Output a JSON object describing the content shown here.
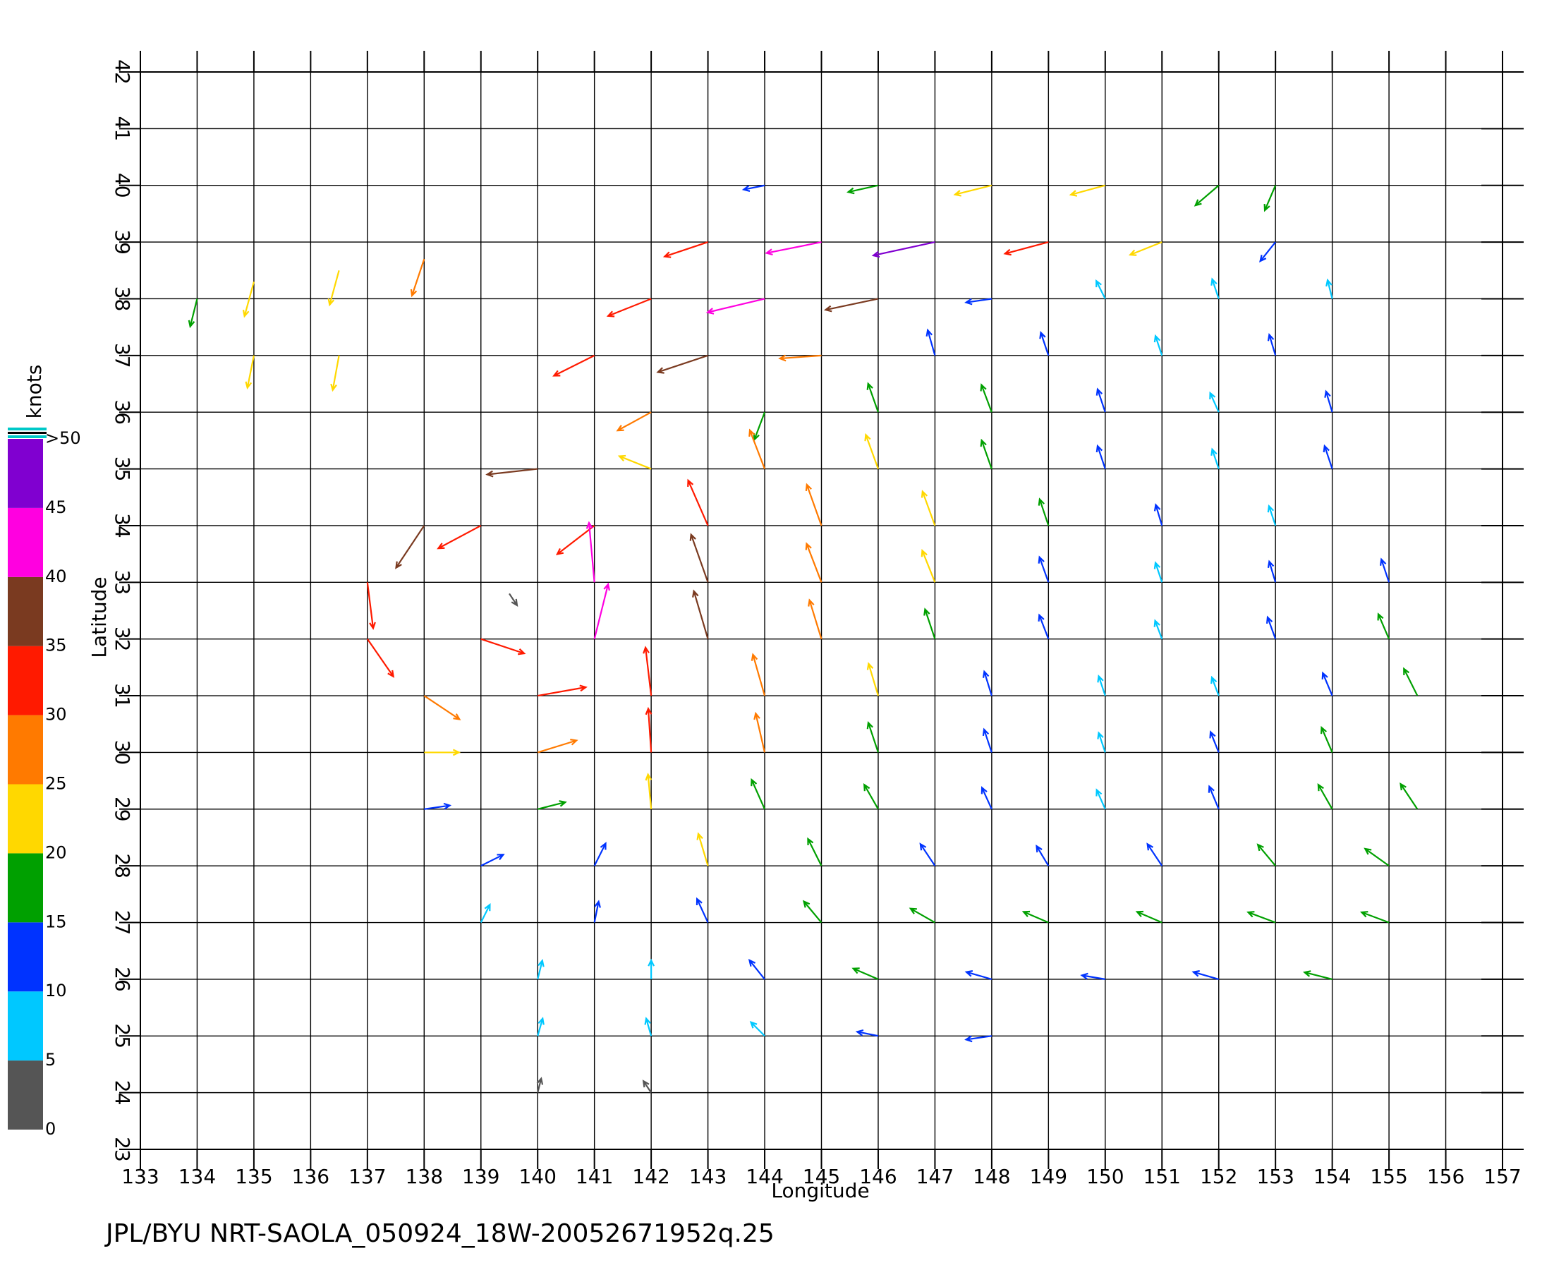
{
  "chart_data": {
    "type": "quiver",
    "footer": "JPL/BYU  NRT-SAOLA_050924_18W-20052671952q.25",
    "x_label": "Longitude",
    "y_label": "Latitude",
    "xlim": [
      133,
      157
    ],
    "xticks": [
      133,
      134,
      135,
      136,
      137,
      138,
      139,
      140,
      141,
      142,
      143,
      144,
      145,
      146,
      147,
      148,
      149,
      150,
      151,
      152,
      153,
      154,
      155,
      156,
      157
    ],
    "ylim": [
      23,
      42
    ],
    "yticks": [
      23,
      24,
      25,
      26,
      27,
      28,
      29,
      30,
      31,
      32,
      33,
      34,
      35,
      36,
      37,
      38,
      39,
      40,
      41,
      42
    ],
    "grid": true,
    "colorbar": {
      "title": "knots",
      "bins": [
        0,
        5,
        10,
        15,
        20,
        25,
        30,
        35,
        40,
        45,
        50
      ],
      "ticks": [
        0,
        5,
        10,
        15,
        20,
        25,
        30,
        35,
        40,
        45,
        {
          "value": 50,
          "label": ">50"
        }
      ],
      "colors": [
        "#555555",
        "#00c8ff",
        "#0033ff",
        "#00a000",
        "#ffd800",
        "#ff7a00",
        "#ff1a00",
        "#7a3a20",
        "#ff00e0",
        "#8000d0"
      ]
    },
    "vectors": [
      {
        "x": 144,
        "y": 40,
        "u": -10,
        "v": -2
      },
      {
        "x": 146,
        "y": 40,
        "u": -18,
        "v": -4
      },
      {
        "x": 148,
        "y": 40,
        "u": -24,
        "v": -6
      },
      {
        "x": 150,
        "y": 40,
        "u": -22,
        "v": -6
      },
      {
        "x": 152,
        "y": 40,
        "u": -14,
        "v": -12
      },
      {
        "x": 153,
        "y": 40,
        "u": -6,
        "v": -14
      },
      {
        "x": 143,
        "y": 39,
        "u": -30,
        "v": -10
      },
      {
        "x": 145,
        "y": 39,
        "u": -40,
        "v": -8
      },
      {
        "x": 147,
        "y": 39,
        "u": -46,
        "v": -10
      },
      {
        "x": 149,
        "y": 39,
        "u": -30,
        "v": -8
      },
      {
        "x": 151,
        "y": 39,
        "u": -20,
        "v": -8
      },
      {
        "x": 153,
        "y": 39,
        "u": -8,
        "v": -10
      },
      {
        "x": 142,
        "y": 38,
        "u": -30,
        "v": -12
      },
      {
        "x": 144,
        "y": 38,
        "u": -42,
        "v": -10
      },
      {
        "x": 146,
        "y": 38,
        "u": -38,
        "v": -8
      },
      {
        "x": 148,
        "y": 38,
        "u": -14,
        "v": -2
      },
      {
        "x": 150,
        "y": 38,
        "u": -4,
        "v": 8
      },
      {
        "x": 152,
        "y": 38,
        "u": -3,
        "v": 9
      },
      {
        "x": 154,
        "y": 38,
        "u": -2,
        "v": 8
      },
      {
        "x": 141,
        "y": 37,
        "u": -28,
        "v": -14
      },
      {
        "x": 143,
        "y": 37,
        "u": -36,
        "v": -12
      },
      {
        "x": 145,
        "y": 37,
        "u": -28,
        "v": -2
      },
      {
        "x": 147,
        "y": 37,
        "u": -4,
        "v": 14
      },
      {
        "x": 149,
        "y": 37,
        "u": -4,
        "v": 12
      },
      {
        "x": 151,
        "y": 37,
        "u": -3,
        "v": 9
      },
      {
        "x": 153,
        "y": 37,
        "u": -3,
        "v": 10
      },
      {
        "x": 142,
        "y": 36,
        "u": -22,
        "v": -12
      },
      {
        "x": 144,
        "y": 36,
        "u": -6,
        "v": -16
      },
      {
        "x": 146,
        "y": 36,
        "u": -6,
        "v": 17
      },
      {
        "x": 148,
        "y": 36,
        "u": -6,
        "v": 16
      },
      {
        "x": 150,
        "y": 36,
        "u": -4,
        "v": 12
      },
      {
        "x": 152,
        "y": 36,
        "u": -4,
        "v": 9
      },
      {
        "x": 154,
        "y": 36,
        "u": -3,
        "v": 10
      },
      {
        "x": 140,
        "y": 35,
        "u": -36,
        "v": -4
      },
      {
        "x": 142,
        "y": 35,
        "u": -20,
        "v": 8
      },
      {
        "x": 144,
        "y": 35,
        "u": -10,
        "v": 26
      },
      {
        "x": 146,
        "y": 35,
        "u": -8,
        "v": 22
      },
      {
        "x": 148,
        "y": 35,
        "u": -6,
        "v": 17
      },
      {
        "x": 150,
        "y": 35,
        "u": -4,
        "v": 12
      },
      {
        "x": 152,
        "y": 35,
        "u": -3,
        "v": 9
      },
      {
        "x": 154,
        "y": 35,
        "u": -4,
        "v": 12
      },
      {
        "x": 138,
        "y": 34,
        "u": -20,
        "v": -30
      },
      {
        "x": 139,
        "y": 34,
        "u": -30,
        "v": -16
      },
      {
        "x": 141,
        "y": 34,
        "u": -26,
        "v": -20
      },
      {
        "x": 143,
        "y": 34,
        "u": -14,
        "v": 32
      },
      {
        "x": 145,
        "y": 34,
        "u": -10,
        "v": 28
      },
      {
        "x": 147,
        "y": 34,
        "u": -8,
        "v": 22
      },
      {
        "x": 149,
        "y": 34,
        "u": -5,
        "v": 15
      },
      {
        "x": 151,
        "y": 34,
        "u": -3,
        "v": 10
      },
      {
        "x": 153,
        "y": 34,
        "u": -3,
        "v": 9
      },
      {
        "x": 137,
        "y": 33,
        "u": 4,
        "v": -32
      },
      {
        "x": 139.5,
        "y": 32.8,
        "u": 2,
        "v": -3
      },
      {
        "x": 141,
        "y": 33,
        "u": -4,
        "v": 44
      },
      {
        "x": 143,
        "y": 33,
        "u": -12,
        "v": 34
      },
      {
        "x": 145,
        "y": 33,
        "u": -10,
        "v": 26
      },
      {
        "x": 147,
        "y": 33,
        "u": -8,
        "v": 20
      },
      {
        "x": 149,
        "y": 33,
        "u": -5,
        "v": 14
      },
      {
        "x": 151,
        "y": 33,
        "u": -3,
        "v": 9
      },
      {
        "x": 153,
        "y": 33,
        "u": -3,
        "v": 10
      },
      {
        "x": 155,
        "y": 33,
        "u": -4,
        "v": 12
      },
      {
        "x": 137,
        "y": 32,
        "u": 18,
        "v": -26
      },
      {
        "x": 139,
        "y": 32,
        "u": 30,
        "v": -10
      },
      {
        "x": 141,
        "y": 32,
        "u": 10,
        "v": 40
      },
      {
        "x": 143,
        "y": 32,
        "u": -10,
        "v": 34
      },
      {
        "x": 145,
        "y": 32,
        "u": -8,
        "v": 26
      },
      {
        "x": 147,
        "y": 32,
        "u": -6,
        "v": 18
      },
      {
        "x": 149,
        "y": 32,
        "u": -5,
        "v": 13
      },
      {
        "x": 151,
        "y": 32,
        "u": -3,
        "v": 8
      },
      {
        "x": 153,
        "y": 32,
        "u": -4,
        "v": 11
      },
      {
        "x": 155,
        "y": 32,
        "u": -6,
        "v": 14
      },
      {
        "x": 138,
        "y": 31,
        "u": 24,
        "v": -16
      },
      {
        "x": 140,
        "y": 31,
        "u": 34,
        "v": 6
      },
      {
        "x": 142,
        "y": 31,
        "u": -4,
        "v": 34
      },
      {
        "x": 144,
        "y": 31,
        "u": -8,
        "v": 28
      },
      {
        "x": 146,
        "y": 31,
        "u": -6,
        "v": 20
      },
      {
        "x": 148,
        "y": 31,
        "u": -4,
        "v": 13
      },
      {
        "x": 150,
        "y": 31,
        "u": -3,
        "v": 9
      },
      {
        "x": 152,
        "y": 31,
        "u": -3,
        "v": 8
      },
      {
        "x": 154,
        "y": 31,
        "u": -5,
        "v": 12
      },
      {
        "x": 155.5,
        "y": 31,
        "u": -8,
        "v": 16
      },
      {
        "x": 138,
        "y": 30,
        "u": 22,
        "v": 0
      },
      {
        "x": 140,
        "y": 30,
        "u": 26,
        "v": 8
      },
      {
        "x": 142,
        "y": 30,
        "u": -2,
        "v": 30
      },
      {
        "x": 144,
        "y": 30,
        "u": -6,
        "v": 26
      },
      {
        "x": 146,
        "y": 30,
        "u": -6,
        "v": 18
      },
      {
        "x": 148,
        "y": 30,
        "u": -4,
        "v": 12
      },
      {
        "x": 150,
        "y": 30,
        "u": -3,
        "v": 9
      },
      {
        "x": 152,
        "y": 30,
        "u": -4,
        "v": 10
      },
      {
        "x": 154,
        "y": 30,
        "u": -6,
        "v": 14
      },
      {
        "x": 138,
        "y": 29,
        "u": 14,
        "v": 2
      },
      {
        "x": 140,
        "y": 29,
        "u": 16,
        "v": 4
      },
      {
        "x": 142,
        "y": 29,
        "u": -2,
        "v": 22
      },
      {
        "x": 144,
        "y": 29,
        "u": -8,
        "v": 18
      },
      {
        "x": 146,
        "y": 29,
        "u": -8,
        "v": 14
      },
      {
        "x": 148,
        "y": 29,
        "u": -5,
        "v": 11
      },
      {
        "x": 150,
        "y": 29,
        "u": -4,
        "v": 9
      },
      {
        "x": 152,
        "y": 29,
        "u": -5,
        "v": 12
      },
      {
        "x": 154,
        "y": 29,
        "u": -8,
        "v": 14
      },
      {
        "x": 155.5,
        "y": 29,
        "u": -10,
        "v": 15
      },
      {
        "x": 139,
        "y": 28,
        "u": 12,
        "v": 6
      },
      {
        "x": 141,
        "y": 28,
        "u": 6,
        "v": 12
      },
      {
        "x": 143,
        "y": 28,
        "u": -6,
        "v": 20
      },
      {
        "x": 145,
        "y": 28,
        "u": -8,
        "v": 16
      },
      {
        "x": 147,
        "y": 28,
        "u": -8,
        "v": 12
      },
      {
        "x": 149,
        "y": 28,
        "u": -6,
        "v": 10
      },
      {
        "x": 151,
        "y": 28,
        "u": -8,
        "v": 12
      },
      {
        "x": 153,
        "y": 28,
        "u": -10,
        "v": 12
      },
      {
        "x": 155,
        "y": 28,
        "u": -14,
        "v": 10
      },
      {
        "x": 139,
        "y": 27,
        "u": 4,
        "v": 8
      },
      {
        "x": 141,
        "y": 27,
        "u": 2,
        "v": 10
      },
      {
        "x": 143,
        "y": 27,
        "u": -6,
        "v": 13
      },
      {
        "x": 145,
        "y": 27,
        "u": -10,
        "v": 12
      },
      {
        "x": 147,
        "y": 27,
        "u": -14,
        "v": 8
      },
      {
        "x": 149,
        "y": 27,
        "u": -14,
        "v": 6
      },
      {
        "x": 151,
        "y": 27,
        "u": -14,
        "v": 6
      },
      {
        "x": 153,
        "y": 27,
        "u": -16,
        "v": 6
      },
      {
        "x": 155,
        "y": 27,
        "u": -16,
        "v": 6
      },
      {
        "x": 140,
        "y": 26,
        "u": 2,
        "v": 8
      },
      {
        "x": 142,
        "y": 26,
        "u": 0,
        "v": 8
      },
      {
        "x": 144,
        "y": 26,
        "u": -8,
        "v": 10
      },
      {
        "x": 146,
        "y": 26,
        "u": -14,
        "v": 6
      },
      {
        "x": 148,
        "y": 26,
        "u": -14,
        "v": 4
      },
      {
        "x": 150,
        "y": 26,
        "u": -12,
        "v": 2
      },
      {
        "x": 152,
        "y": 26,
        "u": -14,
        "v": 4
      },
      {
        "x": 154,
        "y": 26,
        "u": -16,
        "v": 4
      },
      {
        "x": 140,
        "y": 25,
        "u": 2,
        "v": 7
      },
      {
        "x": 142,
        "y": 25,
        "u": -2,
        "v": 7
      },
      {
        "x": 144,
        "y": 25,
        "u": -6,
        "v": 6
      },
      {
        "x": 146,
        "y": 25,
        "u": -10,
        "v": 2
      },
      {
        "x": 148,
        "y": 25,
        "u": -14,
        "v": -2
      },
      {
        "x": 140,
        "y": 24,
        "u": 1,
        "v": 4
      },
      {
        "x": 142,
        "y": 24,
        "u": -2,
        "v": 3
      },
      {
        "x": 134,
        "y": 38,
        "u": -4,
        "v": -16
      },
      {
        "x": 135,
        "y": 38.3,
        "u": -6,
        "v": -22
      },
      {
        "x": 136.5,
        "y": 38.5,
        "u": -6,
        "v": -22
      },
      {
        "x": 138,
        "y": 38.7,
        "u": -8,
        "v": -24
      },
      {
        "x": 135,
        "y": 37,
        "u": -4,
        "v": -20
      },
      {
        "x": 136.5,
        "y": 37,
        "u": -4,
        "v": -22
      }
    ]
  }
}
